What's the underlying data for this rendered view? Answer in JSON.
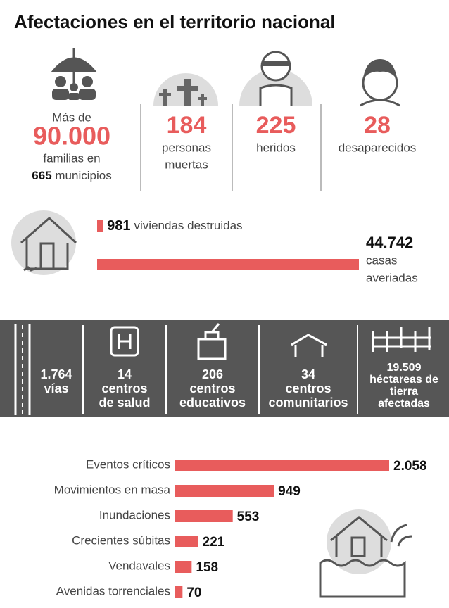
{
  "header": {
    "title": "Afectaciones en el territorio nacional"
  },
  "families": {
    "pre": "Más de",
    "number": "90.000",
    "line1": "familias en",
    "count": "665",
    "line2": "municipios"
  },
  "stats": [
    {
      "value": "184",
      "lines": [
        "personas",
        "muertas"
      ]
    },
    {
      "value": "225",
      "lines": [
        "heridos"
      ]
    },
    {
      "value": "28",
      "lines": [
        "desaparecidos"
      ]
    }
  ],
  "housing": {
    "destroyed": {
      "value": 981,
      "value_label": "981",
      "label": "viviendas destruidas"
    },
    "damaged": {
      "value": 44742,
      "value_label": "44.742",
      "lines": [
        "casas",
        "averiadas"
      ]
    },
    "color": "#e85c5c"
  },
  "infrastructure": [
    {
      "value": "1.764",
      "lines": [
        "vías"
      ]
    },
    {
      "value": "14",
      "lines": [
        "centros",
        "de salud"
      ]
    },
    {
      "value": "206",
      "lines": [
        "centros",
        "educativos"
      ]
    },
    {
      "value": "34",
      "lines": [
        "centros",
        "comunitarios"
      ]
    },
    {
      "value": "19.509",
      "lines": [
        "héctareas de",
        "tierra",
        "afectadas"
      ]
    }
  ],
  "chart_data": {
    "type": "bar",
    "orientation": "horizontal",
    "categories": [
      "Eventos críticos",
      "Movimientos en masa",
      "Inundaciones",
      "Crecientes súbitas",
      "Vendavales",
      "Avenidas torrenciales"
    ],
    "values": [
      2058,
      949,
      553,
      221,
      158,
      70
    ],
    "value_labels": [
      "2.058",
      "949",
      "553",
      "221",
      "158",
      "70"
    ],
    "color": "#e85c5c"
  }
}
